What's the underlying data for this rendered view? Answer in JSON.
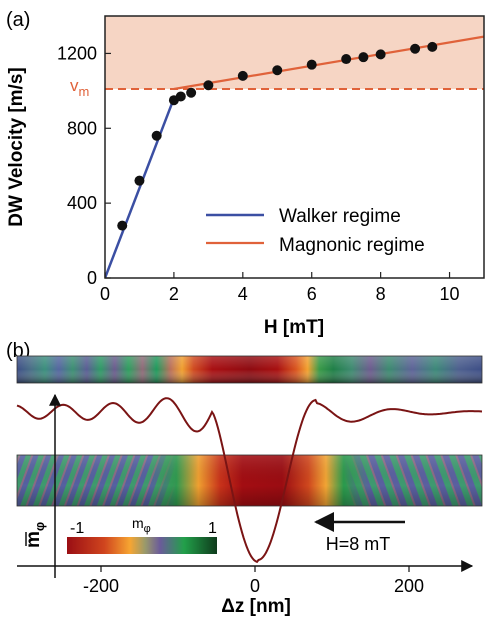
{
  "colors": {
    "walker": "#3b4fa3",
    "magnonic": "#e0623a",
    "shade": "#f6d5c4",
    "points": "#111111",
    "curve": "#7a1414",
    "vm": "#e0623a"
  },
  "chart_data": [
    {
      "panel_label": "(a)",
      "type": "scatter",
      "xlabel": "H [mT]",
      "ylabel": "DW Velocity [m/s]",
      "xlim": [
        0,
        11
      ],
      "ylim": [
        0,
        1400
      ],
      "xticks": [
        0,
        2,
        4,
        6,
        8,
        10
      ],
      "yticks": [
        0,
        400,
        800,
        1200
      ],
      "grid": false,
      "legend_position": "bottom-right",
      "vm_label": "v",
      "vm_subscript": "m",
      "vm_value": 1010,
      "series": [
        {
          "name": "Walker regime",
          "type": "line",
          "color": "#3b4fa3",
          "x": [
            0,
            2.0
          ],
          "y": [
            0,
            960
          ]
        },
        {
          "name": "Magnonic regime",
          "type": "line",
          "color": "#e0623a",
          "x": [
            2.0,
            11
          ],
          "y": [
            1010,
            1290
          ]
        },
        {
          "name": "",
          "type": "scatter",
          "x": [
            0.5,
            1.0,
            1.5,
            2.0,
            2.2,
            2.5,
            3.0,
            4.0,
            5.0,
            6.0,
            7.0,
            7.5,
            8.0,
            9.0,
            9.5
          ],
          "y": [
            280,
            520,
            760,
            950,
            970,
            990,
            1030,
            1080,
            1110,
            1140,
            1170,
            1180,
            1195,
            1225,
            1235
          ]
        }
      ]
    },
    {
      "panel_label": "(b)",
      "type": "line",
      "xlabel": "Δz [nm]",
      "ylabel_main": "m",
      "ylabel_sub": "φ",
      "xticks": [
        -200,
        0,
        200
      ],
      "xlim": [
        -420,
        420
      ],
      "field_label": "H=8 mT",
      "colorbar": {
        "min_label": "-1",
        "max_label": "1",
        "title_main": "m",
        "title_sub": "φ"
      }
    }
  ]
}
